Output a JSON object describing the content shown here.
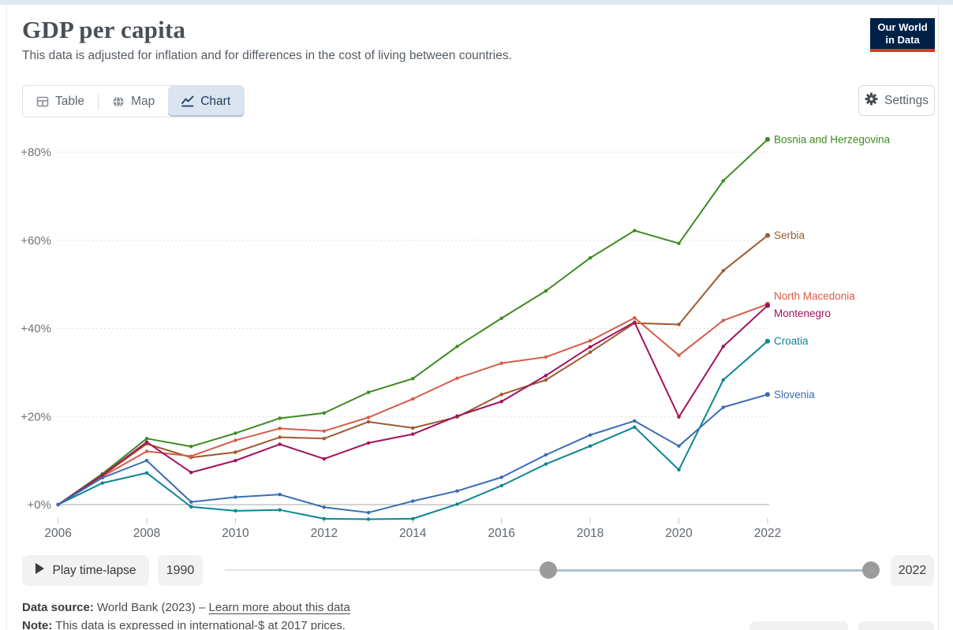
{
  "header": {
    "title": "GDP per capita",
    "subtitle": "This data is adjusted for inflation and for differences in the cost of living between countries.",
    "logo": {
      "line1": "Our World",
      "line2": "in Data",
      "bg": "#002147",
      "accent": "#dc392b"
    }
  },
  "toolbar": {
    "tabs": [
      {
        "label": "Table",
        "icon": "table-icon",
        "active": false
      },
      {
        "label": "Map",
        "icon": "globe-icon",
        "active": false
      },
      {
        "label": "Chart",
        "icon": "line-chart-icon",
        "active": true
      }
    ],
    "settings_label": "Settings"
  },
  "chart_data": {
    "type": "line",
    "title": "GDP per capita",
    "x": [
      2006,
      2007,
      2008,
      2009,
      2010,
      2011,
      2012,
      2013,
      2014,
      2015,
      2016,
      2017,
      2018,
      2019,
      2020,
      2021,
      2022
    ],
    "x_tick_labels": [
      "2006",
      "2008",
      "2010",
      "2012",
      "2014",
      "2016",
      "2018",
      "2020",
      "2022"
    ],
    "y_ticks": [
      {
        "value": 0,
        "label": "+0%"
      },
      {
        "value": 20,
        "label": "+20%"
      },
      {
        "value": 40,
        "label": "+40%"
      },
      {
        "value": 60,
        "label": "+60%"
      },
      {
        "value": 80,
        "label": "+80%"
      }
    ],
    "ylim": [
      -5,
      85
    ],
    "grid": "dashed-horizontal",
    "legend": "line-end-labels",
    "unit": "% change relative to start year",
    "series": [
      {
        "name": "Bosnia and Herzegovina",
        "color": "#3d8b20",
        "values": [
          0,
          7.0,
          15.0,
          13.2,
          16.2,
          19.6,
          20.8,
          25.5,
          28.6,
          35.9,
          42.3,
          48.5,
          56.0,
          62.2,
          59.3,
          73.5,
          82.9
        ]
      },
      {
        "name": "Serbia",
        "color": "#9e5a30",
        "values": [
          0,
          6.6,
          13.8,
          10.7,
          11.9,
          15.3,
          15.0,
          18.8,
          17.4,
          19.9,
          25.0,
          28.3,
          34.6,
          41.2,
          40.9,
          53.1,
          61.1
        ]
      },
      {
        "name": "North Macedonia",
        "color": "#d75c48",
        "values": [
          0,
          6.4,
          12.1,
          11.0,
          14.6,
          17.3,
          16.7,
          19.8,
          24.0,
          28.7,
          32.1,
          33.5,
          37.2,
          42.4,
          33.9,
          41.8,
          45.5
        ]
      },
      {
        "name": "Montenegro",
        "color": "#a3125c",
        "values": [
          0,
          6.7,
          14.2,
          7.3,
          10.0,
          13.7,
          10.4,
          14.0,
          16.0,
          20.1,
          23.4,
          29.3,
          35.8,
          41.4,
          19.9,
          35.9,
          45.2
        ]
      },
      {
        "name": "Croatia",
        "color": "#0e8690",
        "values": [
          0,
          4.9,
          7.2,
          -0.5,
          -1.4,
          -1.2,
          -3.2,
          -3.3,
          -3.2,
          0.1,
          4.3,
          9.2,
          13.3,
          17.6,
          7.9,
          28.3,
          37.1
        ]
      },
      {
        "name": "Slovenia",
        "color": "#3a6cb5",
        "values": [
          0,
          6.1,
          10.0,
          0.6,
          1.7,
          2.3,
          -0.6,
          -1.8,
          0.8,
          3.1,
          6.2,
          11.3,
          15.8,
          19.0,
          13.3,
          22.1,
          25.0
        ]
      }
    ]
  },
  "timeline": {
    "play_label": "Play time-lapse",
    "start_year": "1990",
    "end_year": "2022"
  },
  "footer": {
    "source_prefix": "Data source:",
    "source_text": " World Bank (2023) – ",
    "source_link": "Learn more about this data",
    "note_prefix": "Note:",
    "note_text": " This data is expressed in international-$ at 2017 prices."
  }
}
